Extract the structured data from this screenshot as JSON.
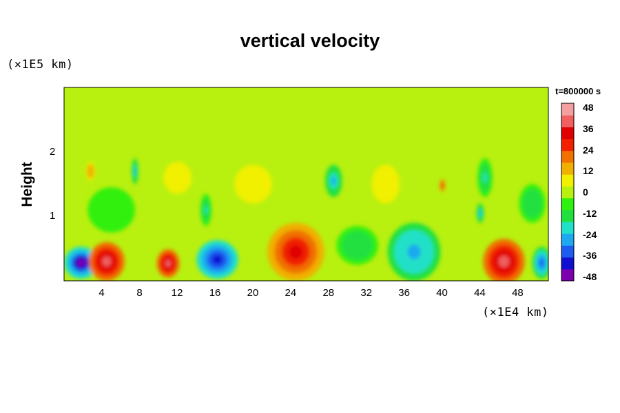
{
  "chart_data": {
    "type": "heatmap",
    "title": "vertical velocity",
    "ylabel": "Height",
    "x_unit": "(×1E4 km)",
    "y_unit": "(×1E5 km)",
    "time_label": "t=800000 s",
    "x_ticks": [
      "4",
      "8",
      "12",
      "16",
      "20",
      "24",
      "28",
      "32",
      "36",
      "40",
      "44",
      "48"
    ],
    "x_tick_values": [
      4,
      8,
      12,
      16,
      20,
      24,
      28,
      32,
      36,
      40,
      44,
      48
    ],
    "y_ticks": [
      "1",
      "2"
    ],
    "y_tick_values": [
      1,
      2
    ],
    "xlim": [
      0,
      51.2
    ],
    "ylim": [
      0,
      3
    ],
    "colorbar": {
      "ticks": [
        "48",
        "36",
        "24",
        "12",
        "0",
        "-12",
        "-24",
        "-36",
        "-48"
      ],
      "range": [
        -48,
        48
      ],
      "colors": [
        "#7a00b0",
        "#1010d0",
        "#1e5cf0",
        "#1ea8f0",
        "#20e0c8",
        "#20e040",
        "#30f010",
        "#b8f010",
        "#f0f000",
        "#f0b000",
        "#f07000",
        "#f02000",
        "#e00000",
        "#f06060",
        "#f5a0a0"
      ]
    },
    "features": [
      {
        "x": 1.8,
        "y": 0.28,
        "value": -46,
        "rx": 1.8,
        "ry": 0.25
      },
      {
        "x": 4.5,
        "y": 0.3,
        "value": 42,
        "rx": 1.9,
        "ry": 0.3
      },
      {
        "x": 11.0,
        "y": 0.27,
        "value": 38,
        "rx": 1.2,
        "ry": 0.22
      },
      {
        "x": 16.2,
        "y": 0.33,
        "value": -38,
        "rx": 2.2,
        "ry": 0.3
      },
      {
        "x": 24.5,
        "y": 0.45,
        "value": 36,
        "rx": 3.0,
        "ry": 0.45
      },
      {
        "x": 31.0,
        "y": 0.55,
        "value": -16,
        "rx": 2.2,
        "ry": 0.3
      },
      {
        "x": 37.0,
        "y": 0.45,
        "value": -28,
        "rx": 2.8,
        "ry": 0.45
      },
      {
        "x": 46.5,
        "y": 0.3,
        "value": 38,
        "rx": 2.2,
        "ry": 0.35
      },
      {
        "x": 50.5,
        "y": 0.28,
        "value": -34,
        "rx": 1.0,
        "ry": 0.25
      },
      {
        "x": 7.5,
        "y": 1.7,
        "value": -26,
        "rx": 0.35,
        "ry": 0.2
      },
      {
        "x": 2.8,
        "y": 1.7,
        "value": 16,
        "rx": 0.5,
        "ry": 0.15
      },
      {
        "x": 28.5,
        "y": 1.55,
        "value": -26,
        "rx": 0.9,
        "ry": 0.25
      },
      {
        "x": 40.0,
        "y": 1.48,
        "value": 28,
        "rx": 0.3,
        "ry": 0.1
      },
      {
        "x": 44.5,
        "y": 1.6,
        "value": -18,
        "rx": 0.8,
        "ry": 0.3
      },
      {
        "x": 44.0,
        "y": 1.05,
        "value": -26,
        "rx": 0.4,
        "ry": 0.15
      },
      {
        "x": 15.0,
        "y": 1.1,
        "value": -20,
        "rx": 0.6,
        "ry": 0.25
      },
      {
        "x": 20.0,
        "y": 1.5,
        "value": 8,
        "rx": 2.0,
        "ry": 0.3
      },
      {
        "x": 34.0,
        "y": 1.5,
        "value": 8,
        "rx": 1.5,
        "ry": 0.3
      },
      {
        "x": 49.5,
        "y": 1.2,
        "value": -16,
        "rx": 1.4,
        "ry": 0.3
      },
      {
        "x": 5.0,
        "y": 1.1,
        "value": -8,
        "rx": 2.5,
        "ry": 0.35
      },
      {
        "x": 12.0,
        "y": 1.6,
        "value": 8,
        "rx": 1.5,
        "ry": 0.25
      }
    ]
  }
}
